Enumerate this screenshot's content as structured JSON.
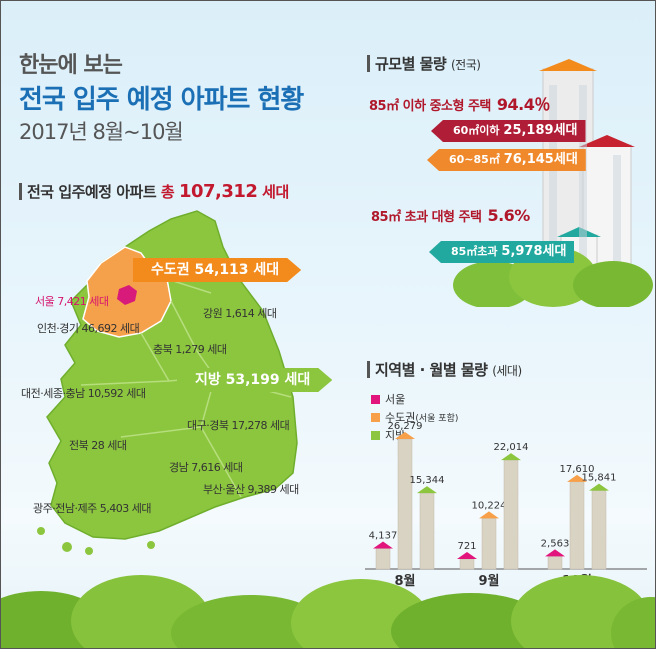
{
  "header": {
    "line1": "한눈에 보는",
    "line2": "전국 입주 예정 아파트 현황",
    "line3": "2017년  8월~10월"
  },
  "national": {
    "label": "전국 입주예정 아파트",
    "total_prefix": "총",
    "total_value": "107,312",
    "total_unit": "세대"
  },
  "map": {
    "capital_flag": "수도권 54,113 세대",
    "local_flag": "지방 53,199 세대",
    "regions": {
      "seoul": "서울 7,421 세대",
      "incheon": "인천·경기 46,692 세대",
      "gangwon": "강원 1,614 세대",
      "chungbuk": "충북 1,279 세대",
      "daejeon": "대전·세종·충남 10,592 세대",
      "daegu": "대구·경북 17,278 세대",
      "jeonbuk": "전북 28 세대",
      "gyeongnam": "경남 7,616 세대",
      "busan": "부산·울산 9,389 세대",
      "gwangju": "광주·전남·제주 5,403 세대"
    },
    "colors": {
      "land": "#8cc63f",
      "capital": "#f5a04a",
      "seoul": "#d81b7a"
    }
  },
  "size_section": {
    "title": "규모별 물량",
    "title_sub": "(전국)",
    "small_label": "85㎡ 이하 중소형 주택",
    "small_pct": "94.4％",
    "r1_label": "60㎡이하",
    "r1_value": "25,189세대",
    "r2_label": "60~85㎡",
    "r2_value": "76,145세대",
    "large_label": "85㎡ 초과 대형 주택",
    "large_pct": "5.6%",
    "r3_label": "85㎡초과",
    "r3_value": "5,978세대"
  },
  "chart_data": {
    "type": "bar",
    "title": "지역별 · 월별 물량",
    "title_unit": "(세대)",
    "categories": [
      "8월",
      "9월",
      "10월"
    ],
    "series": [
      {
        "name": "서울",
        "color": "#e2157d",
        "values": [
          4137,
          721,
          2563
        ]
      },
      {
        "name": "수도권",
        "name_note": "(서울 포함)",
        "color": "#f7a049",
        "values": [
          26279,
          10224,
          17610
        ]
      },
      {
        "name": "지방",
        "color": "#8cc63f",
        "values": [
          15344,
          22014,
          15841
        ]
      }
    ],
    "labels": [
      [
        "4,137",
        "26,279",
        "15,344"
      ],
      [
        "721",
        "10,224",
        "22,014"
      ],
      [
        "2,563",
        "17,610",
        "15,841"
      ]
    ],
    "ylim": [
      0,
      26279
    ]
  }
}
